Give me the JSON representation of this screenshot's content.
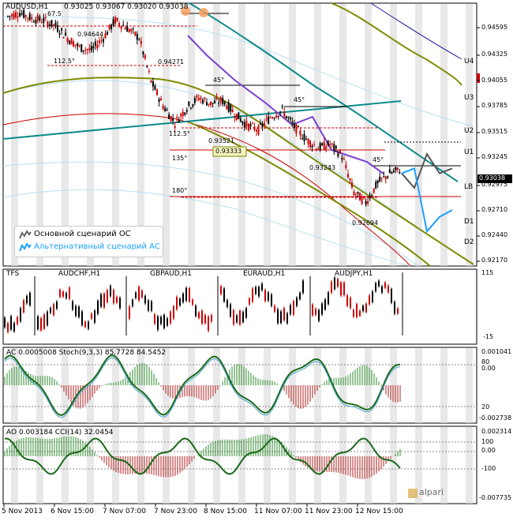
{
  "header": {
    "symbol": "AUDUSD,H1",
    "ohlc": "0.93025 0.93067 0.93020 0.93038"
  },
  "main_chart": {
    "price_axis": [
      "0.94595",
      "0.94325",
      "0.94055",
      "0.93785",
      "0.93515",
      "0.93245",
      "0.92975",
      "0.92710",
      "0.92440",
      "0.92170"
    ],
    "current_price": "0.93038",
    "levels": [
      "U4",
      "U3",
      "U2",
      "U1",
      "LB",
      "D1",
      "D2"
    ],
    "annotations": {
      "p1": "0.94644",
      "p2": "0.94271",
      "p3": "0.93521",
      "p4": "0.93333",
      "p5": "0.93243",
      "p6": "0.92694",
      "g1": "67.5",
      "g2": "112.5°",
      "g3": "112.5°",
      "g4": "135°",
      "g5": "180°",
      "a1": "45°",
      "a2": "45°",
      "a3": "45°"
    }
  },
  "legend": {
    "row1": "Основной сценарий ОС",
    "row2": "Альтернативный сценарий АС",
    "row2_color": "#1aa0ff"
  },
  "tfs_panel": {
    "title": "TFS",
    "pairs": [
      "AUDCHF,H1",
      "GBPAUD,H1",
      "EURAUD,H1",
      "AUDJPY,H1"
    ],
    "axis": [
      "115",
      "-15"
    ]
  },
  "ac_panel": {
    "title": "AC 0.0005008  Stoch(9,3,3) 85.7728 84.5452",
    "axis": [
      "0.001041",
      "80",
      "0.00",
      "20",
      "-0.002738"
    ]
  },
  "ao_panel": {
    "title": "AO 0.003184  CCI(14) 32.0454",
    "axis": [
      "0.002314",
      "100",
      "0.00",
      "-100",
      "-0.007735"
    ]
  },
  "time_axis": [
    "5 Nov 2013",
    "6 Nov 15:00",
    "7 Nov 07:00",
    "7 Nov 23:00",
    "8 Nov 15:00",
    "11 Nov 07:00",
    "11 Nov 23:00",
    "12 Nov 15:00"
  ],
  "watermark": "alpari",
  "colors": {
    "bull": "#000000",
    "bear": "#cc0000",
    "teal": "#0d8a8a",
    "olive": "#7f8a00",
    "purple": "#7a40d0",
    "navy": "#1a1aa0",
    "alt_scenario": "#1aa0ff",
    "grid_band": "#d8d8d8"
  },
  "chart_data": {
    "type": "candlestick",
    "symbol": "AUDUSD",
    "timeframe": "H1",
    "ylim": [
      0.9205,
      0.9475
    ],
    "key_prices": [
      0.94644,
      0.94271,
      0.93521,
      0.93333,
      0.93243,
      0.92694,
      0.93038
    ],
    "close_path": [
      [
        0,
        0.9462
      ],
      [
        6,
        0.9466
      ],
      [
        12,
        0.946
      ],
      [
        18,
        0.9458
      ],
      [
        24,
        0.9452
      ],
      [
        30,
        0.944
      ],
      [
        36,
        0.943
      ],
      [
        42,
        0.9427
      ],
      [
        48,
        0.944
      ],
      [
        54,
        0.9458
      ],
      [
        60,
        0.945
      ],
      [
        66,
        0.944
      ],
      [
        72,
        0.9395
      ],
      [
        78,
        0.937
      ],
      [
        84,
        0.9352
      ],
      [
        90,
        0.9368
      ],
      [
        96,
        0.9378
      ],
      [
        102,
        0.9372
      ],
      [
        108,
        0.9375
      ],
      [
        114,
        0.9362
      ],
      [
        120,
        0.935
      ],
      [
        126,
        0.9345
      ],
      [
        132,
        0.9358
      ],
      [
        138,
        0.9365
      ],
      [
        144,
        0.9348
      ],
      [
        150,
        0.9335
      ],
      [
        156,
        0.9326
      ],
      [
        162,
        0.933
      ],
      [
        168,
        0.9318
      ],
      [
        174,
        0.928
      ],
      [
        180,
        0.927
      ],
      [
        186,
        0.929
      ],
      [
        192,
        0.93
      ],
      [
        198,
        0.9304
      ]
    ],
    "scenarios": {
      "main": [
        0.93,
        0.9285,
        0.932,
        0.93,
        0.9305
      ],
      "alt": [
        0.93,
        0.9305,
        0.924,
        0.9255,
        0.9262
      ]
    }
  }
}
